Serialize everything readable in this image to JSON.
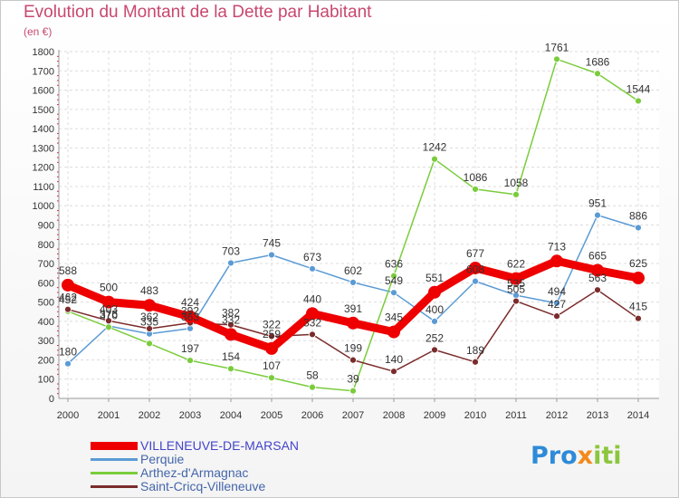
{
  "header": {
    "title": "Evolution du Montant de la Dette par Habitant",
    "unit": "(en €)"
  },
  "brand": {
    "part1": "Pro",
    "part2": "x",
    "part3": "iti"
  },
  "chart_data": {
    "type": "line",
    "title": "Evolution du Montant de la Dette par Habitant",
    "subtitle": "(en €)",
    "xlabel": "",
    "ylabel": "",
    "x": [
      "2000",
      "2001",
      "2002",
      "2003",
      "2004",
      "2005",
      "2006",
      "2007",
      "2008",
      "2009",
      "2010",
      "2011",
      "2012",
      "2013",
      "2014"
    ],
    "yticks": [
      "0",
      "100",
      "200",
      "300",
      "400",
      "500",
      "600",
      "700",
      "800",
      "900",
      "1000",
      "1100",
      "1200",
      "1300",
      "1400",
      "1500",
      "1600",
      "1700",
      "1800"
    ],
    "ylim": [
      0,
      1800
    ],
    "grid": true,
    "legend_position": "bottom-left",
    "series": [
      {
        "name": "VILLENEUVE-DE-MARSAN",
        "color": "#ee0000",
        "thick": true,
        "values": [
          588,
          500,
          483,
          424,
          332,
          259,
          440,
          391,
          345,
          551,
          677,
          622,
          713,
          665,
          625
        ],
        "labels": [
          "588",
          "500",
          "483",
          "424",
          "332",
          "259",
          "440",
          "391",
          "345",
          "551",
          "677",
          "622",
          "713",
          "665",
          "625"
        ]
      },
      {
        "name": "Perquie",
        "color": "#5b9bd5",
        "thick": false,
        "values": [
          180,
          376,
          335,
          363,
          703,
          745,
          673,
          602,
          549,
          400,
          608,
          535,
          494,
          951,
          886
        ],
        "labels": [
          "180",
          "376",
          "335",
          "363",
          "703",
          "745",
          "673",
          "602",
          "549",
          "400",
          "608",
          "535",
          "494",
          "951",
          "886"
        ]
      },
      {
        "name": "Arthez-d'Armagnac",
        "color": "#7acc3c",
        "thick": false,
        "values": [
          452,
          370,
          285,
          197,
          154,
          107,
          58,
          39,
          636,
          1242,
          1086,
          1058,
          1761,
          1686,
          1544
        ],
        "labels": [
          "452",
          "370",
          "",
          "197",
          "154",
          "107",
          "58",
          "39",
          "636",
          "1242",
          "1086",
          "1058",
          "1761",
          "1686",
          "1544"
        ]
      },
      {
        "name": "Saint-Cricq-Villeneuve",
        "color": "#7b2b2b",
        "thick": false,
        "values": [
          462,
          403,
          362,
          392,
          382,
          322,
          332,
          199,
          140,
          252,
          189,
          505,
          427,
          563,
          415
        ],
        "labels": [
          "462",
          "403",
          "362",
          "392",
          "382",
          "322",
          "332",
          "199",
          "140",
          "252",
          "189",
          "505",
          "427",
          "563",
          "415"
        ]
      }
    ]
  }
}
